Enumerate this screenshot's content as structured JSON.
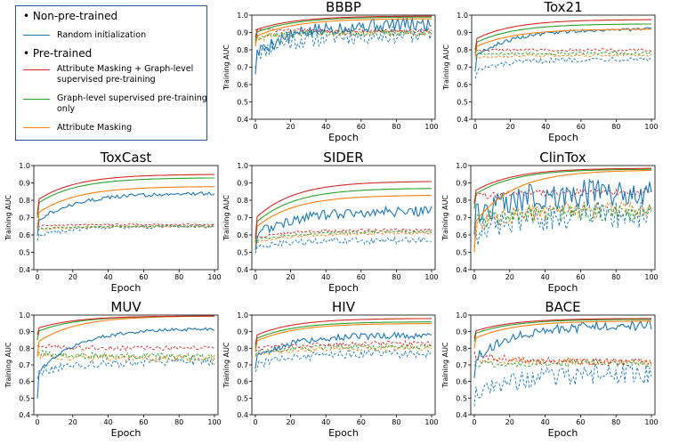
{
  "legend": {
    "group1": "Non-pre-trained",
    "group2": "Pre-trained",
    "bullet": "•",
    "items": [
      {
        "label": "Random initialization",
        "color": "#1f77b4"
      },
      {
        "label": "Attribute Masking + Graph-level supervised pre-training",
        "color": "#d62728"
      },
      {
        "label": "Graph-level supervised pre-training only",
        "color": "#2ca02c"
      },
      {
        "label": "Attribute Masking",
        "color": "#ff7f0e"
      }
    ]
  },
  "chart_data": [
    {
      "type": "line",
      "title": "BBBP",
      "xlabel": "Epoch",
      "ylabel": "Training AUC",
      "xlim": [
        0,
        100
      ],
      "ylim": [
        0.4,
        1.0
      ],
      "xticks": [
        0,
        20,
        40,
        60,
        80,
        100
      ],
      "yticks": [
        "0.4",
        "0.5",
        "0.6",
        "0.7",
        "0.8",
        "0.9",
        "1.0"
      ],
      "series": [
        {
          "name": "Random initialization",
          "solid": {
            "start": 0.68,
            "end": 0.95,
            "noise": 0.04
          },
          "dashed": {
            "start": 0.72,
            "end": 0.89,
            "noise": 0.05
          }
        },
        {
          "name": "Attribute Masking + Graph-level supervised pre-training",
          "solid": {
            "start": 0.87,
            "end": 0.995,
            "noise": 0.0
          },
          "dashed": {
            "start": 0.92,
            "end": 0.91,
            "noise": 0.01
          }
        },
        {
          "name": "Graph-level supervised pre-training only",
          "solid": {
            "start": 0.85,
            "end": 0.99,
            "noise": 0.0
          },
          "dashed": {
            "start": 0.87,
            "end": 0.9,
            "noise": 0.02
          }
        },
        {
          "name": "Attribute Masking",
          "solid": {
            "start": 0.82,
            "end": 0.98,
            "noise": 0.0
          },
          "dashed": {
            "start": 0.85,
            "end": 0.9,
            "noise": 0.02
          }
        }
      ]
    },
    {
      "type": "line",
      "title": "Tox21",
      "xlabel": "Epoch",
      "ylabel": "Training AUC",
      "xlim": [
        0,
        100
      ],
      "ylim": [
        0.4,
        1.0
      ],
      "xticks": [
        0,
        20,
        40,
        60,
        80,
        100
      ],
      "yticks": [
        "0.4",
        "0.5",
        "0.6",
        "0.7",
        "0.8",
        "0.9",
        "1.0"
      ],
      "series": [
        {
          "name": "Random initialization",
          "solid": {
            "start": 0.68,
            "end": 0.92,
            "noise": 0.01
          },
          "dashed": {
            "start": 0.64,
            "end": 0.75,
            "noise": 0.015
          }
        },
        {
          "name": "Attribute Masking + Graph-level supervised pre-training",
          "solid": {
            "start": 0.8,
            "end": 0.975,
            "noise": 0.0
          },
          "dashed": {
            "start": 0.8,
            "end": 0.8,
            "noise": 0.008
          }
        },
        {
          "name": "Graph-level supervised pre-training only",
          "solid": {
            "start": 0.78,
            "end": 0.95,
            "noise": 0.0
          },
          "dashed": {
            "start": 0.77,
            "end": 0.78,
            "noise": 0.008
          }
        },
        {
          "name": "Attribute Masking",
          "solid": {
            "start": 0.76,
            "end": 0.92,
            "noise": 0.0
          },
          "dashed": {
            "start": 0.75,
            "end": 0.77,
            "noise": 0.008
          }
        }
      ]
    },
    {
      "type": "line",
      "title": "ToxCast",
      "xlabel": "Epoch",
      "ylabel": "Training AUC",
      "xlim": [
        0,
        100
      ],
      "ylim": [
        0.4,
        1.0
      ],
      "xticks": [
        0,
        20,
        40,
        60,
        80,
        100
      ],
      "yticks": [
        "0.4",
        "0.5",
        "0.6",
        "0.7",
        "0.8",
        "0.9",
        "1.0"
      ],
      "series": [
        {
          "name": "Random initialization",
          "solid": {
            "start": 0.6,
            "end": 0.84,
            "noise": 0.01
          },
          "dashed": {
            "start": 0.57,
            "end": 0.65,
            "noise": 0.01
          }
        },
        {
          "name": "Attribute Masking + Graph-level supervised pre-training",
          "solid": {
            "start": 0.72,
            "end": 0.95,
            "noise": 0.0
          },
          "dashed": {
            "start": 0.65,
            "end": 0.66,
            "noise": 0.005
          }
        },
        {
          "name": "Graph-level supervised pre-training only",
          "solid": {
            "start": 0.7,
            "end": 0.93,
            "noise": 0.0
          },
          "dashed": {
            "start": 0.63,
            "end": 0.65,
            "noise": 0.005
          }
        },
        {
          "name": "Attribute Masking",
          "solid": {
            "start": 0.64,
            "end": 0.88,
            "noise": 0.0
          },
          "dashed": {
            "start": 0.62,
            "end": 0.65,
            "noise": 0.005
          }
        }
      ]
    },
    {
      "type": "line",
      "title": "SIDER",
      "xlabel": "Epoch",
      "ylabel": "Training AUC",
      "xlim": [
        0,
        100
      ],
      "ylim": [
        0.4,
        1.0
      ],
      "xticks": [
        0,
        20,
        40,
        60,
        80,
        100
      ],
      "yticks": [
        "0.4",
        "0.5",
        "0.6",
        "0.7",
        "0.8",
        "0.9",
        "1.0"
      ],
      "series": [
        {
          "name": "Random initialization",
          "solid": {
            "start": 0.52,
            "end": 0.74,
            "noise": 0.03
          },
          "dashed": {
            "start": 0.5,
            "end": 0.57,
            "noise": 0.02
          }
        },
        {
          "name": "Attribute Masking + Graph-level supervised pre-training",
          "solid": {
            "start": 0.58,
            "end": 0.91,
            "noise": 0.0
          },
          "dashed": {
            "start": 0.56,
            "end": 0.63,
            "noise": 0.008
          }
        },
        {
          "name": "Graph-level supervised pre-training only",
          "solid": {
            "start": 0.56,
            "end": 0.87,
            "noise": 0.0
          },
          "dashed": {
            "start": 0.54,
            "end": 0.62,
            "noise": 0.008
          }
        },
        {
          "name": "Attribute Masking",
          "solid": {
            "start": 0.54,
            "end": 0.83,
            "noise": 0.0
          },
          "dashed": {
            "start": 0.53,
            "end": 0.61,
            "noise": 0.008
          }
        }
      ]
    },
    {
      "type": "line",
      "title": "ClinTox",
      "xlabel": "Epoch",
      "ylabel": "Training AUC",
      "xlim": [
        0,
        100
      ],
      "ylim": [
        0.4,
        1.0
      ],
      "xticks": [
        0,
        20,
        40,
        60,
        80,
        100
      ],
      "yticks": [
        "0.4",
        "0.5",
        "0.6",
        "0.7",
        "0.8",
        "0.9",
        "1.0"
      ],
      "series": [
        {
          "name": "Random initialization",
          "solid": {
            "start": 0.62,
            "end": 0.85,
            "noise": 0.08
          },
          "dashed": {
            "start": 0.55,
            "end": 0.72,
            "noise": 0.08
          }
        },
        {
          "name": "Attribute Masking + Graph-level supervised pre-training",
          "solid": {
            "start": 0.78,
            "end": 0.985,
            "noise": 0.0
          },
          "dashed": {
            "start": 0.8,
            "end": 0.85,
            "noise": 0.02
          }
        },
        {
          "name": "Graph-level supervised pre-training only",
          "solid": {
            "start": 0.75,
            "end": 0.98,
            "noise": 0.0
          },
          "dashed": {
            "start": 0.65,
            "end": 0.73,
            "noise": 0.05
          }
        },
        {
          "name": "Attribute Masking",
          "solid": {
            "start": 0.5,
            "end": 0.975,
            "noise": 0.0
          },
          "dashed": {
            "start": 0.6,
            "end": 0.75,
            "noise": 0.05
          }
        }
      ]
    },
    {
      "type": "line",
      "title": "MUV",
      "xlabel": "Epoch",
      "ylabel": "Training AUC",
      "xlim": [
        0,
        100
      ],
      "ylim": [
        0.4,
        1.0
      ],
      "xticks": [
        0,
        20,
        40,
        60,
        80,
        100
      ],
      "yticks": [
        "0.4",
        "0.5",
        "0.6",
        "0.7",
        "0.8",
        "0.9",
        "1.0"
      ],
      "series": [
        {
          "name": "Random initialization",
          "solid": {
            "start": 0.5,
            "end": 0.92,
            "noise": 0.01
          },
          "dashed": {
            "start": 0.62,
            "end": 0.72,
            "noise": 0.025
          }
        },
        {
          "name": "Attribute Masking + Graph-level supervised pre-training",
          "solid": {
            "start": 0.88,
            "end": 0.995,
            "noise": 0.0
          },
          "dashed": {
            "start": 0.82,
            "end": 0.8,
            "noise": 0.015
          }
        },
        {
          "name": "Graph-level supervised pre-training only",
          "solid": {
            "start": 0.85,
            "end": 0.995,
            "noise": 0.0
          },
          "dashed": {
            "start": 0.78,
            "end": 0.75,
            "noise": 0.02
          }
        },
        {
          "name": "Attribute Masking",
          "solid": {
            "start": 0.75,
            "end": 0.995,
            "noise": 0.0
          },
          "dashed": {
            "start": 0.76,
            "end": 0.74,
            "noise": 0.02
          }
        }
      ]
    },
    {
      "type": "line",
      "title": "HIV",
      "xlabel": "Epoch",
      "ylabel": "Training AUC",
      "xlim": [
        0,
        100
      ],
      "ylim": [
        0.4,
        1.0
      ],
      "xticks": [
        0,
        20,
        40,
        60,
        80,
        100
      ],
      "yticks": [
        "0.4",
        "0.5",
        "0.6",
        "0.7",
        "0.8",
        "0.9",
        "1.0"
      ],
      "series": [
        {
          "name": "Random initialization",
          "solid": {
            "start": 0.68,
            "end": 0.88,
            "noise": 0.02
          },
          "dashed": {
            "start": 0.66,
            "end": 0.77,
            "noise": 0.025
          }
        },
        {
          "name": "Attribute Masking + Graph-level supervised pre-training",
          "solid": {
            "start": 0.82,
            "end": 0.98,
            "noise": 0.0
          },
          "dashed": {
            "start": 0.78,
            "end": 0.83,
            "noise": 0.015
          }
        },
        {
          "name": "Graph-level supervised pre-training only",
          "solid": {
            "start": 0.8,
            "end": 0.96,
            "noise": 0.0
          },
          "dashed": {
            "start": 0.76,
            "end": 0.81,
            "noise": 0.015
          }
        },
        {
          "name": "Attribute Masking",
          "solid": {
            "start": 0.78,
            "end": 0.95,
            "noise": 0.0
          },
          "dashed": {
            "start": 0.75,
            "end": 0.8,
            "noise": 0.015
          }
        }
      ]
    },
    {
      "type": "line",
      "title": "BACE",
      "xlabel": "Epoch",
      "ylabel": "Training AUC",
      "xlim": [
        0,
        100
      ],
      "ylim": [
        0.4,
        1.0
      ],
      "xticks": [
        0,
        20,
        40,
        60,
        80,
        100
      ],
      "yticks": [
        "0.4",
        "0.5",
        "0.6",
        "0.7",
        "0.8",
        "0.9",
        "1.0"
      ],
      "series": [
        {
          "name": "Random initialization",
          "solid": {
            "start": 0.62,
            "end": 0.94,
            "noise": 0.03
          },
          "dashed": {
            "start": 0.45,
            "end": 0.65,
            "noise": 0.06
          }
        },
        {
          "name": "Attribute Masking + Graph-level supervised pre-training",
          "solid": {
            "start": 0.86,
            "end": 0.98,
            "noise": 0.0
          },
          "dashed": {
            "start": 0.78,
            "end": 0.72,
            "noise": 0.02
          }
        },
        {
          "name": "Graph-level supervised pre-training only",
          "solid": {
            "start": 0.84,
            "end": 0.975,
            "noise": 0.0
          },
          "dashed": {
            "start": 0.7,
            "end": 0.71,
            "noise": 0.02
          }
        },
        {
          "name": "Attribute Masking",
          "solid": {
            "start": 0.8,
            "end": 0.965,
            "noise": 0.0
          },
          "dashed": {
            "start": 0.72,
            "end": 0.72,
            "noise": 0.02
          }
        }
      ]
    }
  ]
}
